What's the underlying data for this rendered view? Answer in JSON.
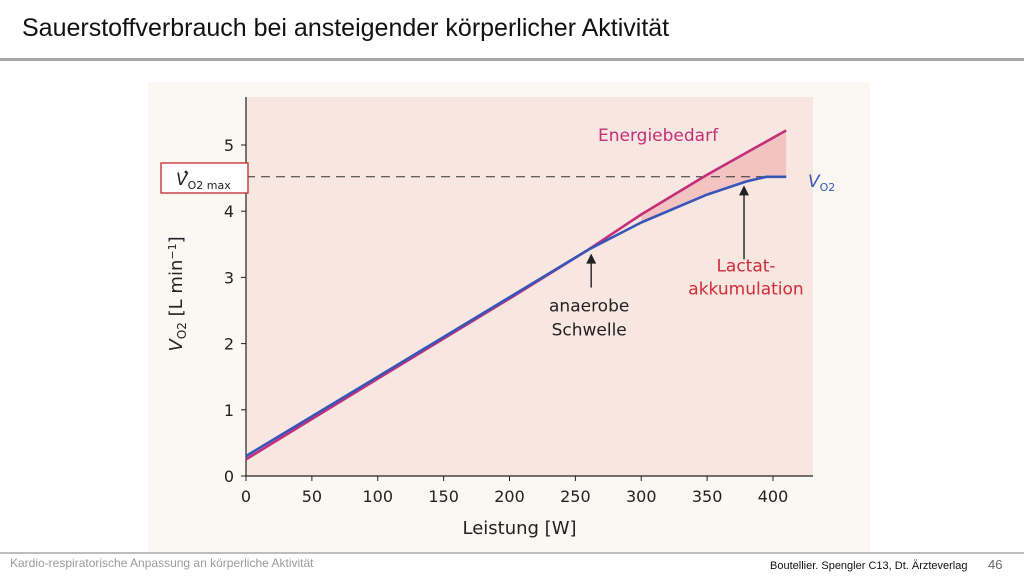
{
  "slide": {
    "title": "Sauerstoffverbrauch bei ansteigender körperlicher Aktivität",
    "footer_left": "Kardio-respiratorische Anpassung an körperliche Aktivität",
    "footer_right": "Boutellier. Spengler C13, Dt. Ärzteverlag",
    "page_number": "46"
  },
  "chart_data": {
    "type": "line",
    "xlabel": "Leistung [W]",
    "ylabel": "VO2 [L min−1]",
    "xlim": [
      0,
      430
    ],
    "ylim": [
      0,
      5.5
    ],
    "x_ticks": [
      "0",
      "50",
      "100",
      "150",
      "200",
      "250",
      "300",
      "350",
      "400"
    ],
    "y_ticks": [
      "0",
      "1",
      "2",
      "3",
      "4",
      "5"
    ],
    "grid": false,
    "series": [
      {
        "name": "Energiebedarf",
        "color": "#c2307a",
        "x": [
          0,
          100,
          200,
          260,
          300,
          350,
          410
        ],
        "y": [
          0.25,
          1.47,
          2.68,
          3.42,
          3.95,
          4.55,
          5.22
        ]
      },
      {
        "name": "VO2",
        "color": "#3856b8",
        "x": [
          0,
          100,
          200,
          260,
          300,
          350,
          380,
          395,
          410
        ],
        "y": [
          0.3,
          1.5,
          2.7,
          3.42,
          3.83,
          4.25,
          4.45,
          4.52,
          4.52
        ]
      }
    ],
    "reference_line": {
      "label": "VO2 max",
      "y": 4.52,
      "style": "dashed",
      "box_color": "#c0292b"
    },
    "annotations": [
      {
        "text": [
          "anaerobe",
          "Schwelle"
        ],
        "x": 262,
        "y": 3.42,
        "color": "#222222"
      },
      {
        "text": [
          "Lactat-",
          "akkumulation"
        ],
        "x": 378,
        "y": 4.45,
        "color": "#d12a3a"
      }
    ]
  }
}
